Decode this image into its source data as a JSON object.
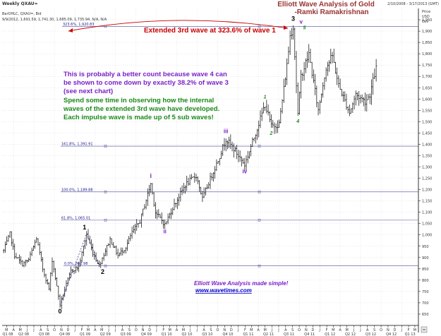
{
  "header": {
    "chart_name": "Weekly QXAU=",
    "series_desc": "BarOHLC, QXAU=, Bid",
    "ohlc_line": "9/9/2012, 1,691.59, 1,741.30, 1,685.09, 1,735.94, N/A, N/A",
    "date_range": "2/10/2008 - 3/17/2013 (GMT)",
    "price_label": "Price",
    "currency_label": "USD",
    "unit_label": "Ozs"
  },
  "title": {
    "line1": "Elliott Wave Analysis of Gold",
    "line2": "-Ramki Ramakrishnan"
  },
  "annotations": {
    "extended": "Extended 3rd wave at 323.6% of wave 1",
    "note_purple": [
      "This is probably a better count because wave 4 can",
      "be shown to come down by exactly 38.2% of wave 3",
      "(see next chart)"
    ],
    "note_green": [
      "Spend some time in observing how the internal",
      "waves of the extended 3rd wave have developed.",
      "Each impulse wave is made up of 5 sub waves!"
    ],
    "footer_line1": "Elliott Wave Analysis made simple!",
    "footer_line2": "www.wavetimes.com"
  },
  "colors": {
    "bar": "#000000",
    "fib_line": "#4a4a9a",
    "purple": "#7a1fc8",
    "green": "#1a8a1a",
    "red_text": "#cc0000",
    "blue_text": "#0000cc",
    "title": "#993333",
    "grid": "#c8c8c8"
  },
  "chart_data": {
    "type": "ohlc",
    "title": "Elliott Wave Analysis of Gold",
    "xlabel": "",
    "ylabel": "Price USD Ozs",
    "ylim": [
      600,
      2000
    ],
    "y_ticks": [
      650,
      700,
      750,
      800,
      850,
      900,
      950,
      1000,
      1050,
      1100,
      1150,
      1200,
      1250,
      1300,
      1350,
      1400,
      1450,
      1500,
      1550,
      1600,
      1650,
      1700,
      1750,
      1800,
      1850,
      1900,
      1950
    ],
    "y_tick_labels": [
      "650",
      "700",
      "750",
      "800",
      "850",
      "900",
      "950",
      "1,000",
      "1,050",
      "1,100",
      "1,150",
      "1,200",
      "1,250",
      "1,300",
      "1,350",
      "1,400",
      "1,450",
      "1,500",
      "1,550",
      "1,600",
      "1,650",
      "1,700",
      "1,750",
      "1,800",
      "1,850",
      "1,900",
      "1,950"
    ],
    "quarters": [
      "Q1 08",
      "Q2 08",
      "Q3 08",
      "Q4 08",
      "Q1 09",
      "Q2 09",
      "Q3 09",
      "Q4 09",
      "Q1 10",
      "Q2 10",
      "Q3 10",
      "Q4 10",
      "Q1 11",
      "Q2 11",
      "Q3 11",
      "Q4 11",
      "Q1 12",
      "Q2 12",
      "Q3 12",
      "Q4 12",
      "Q1 13"
    ],
    "months": [
      "M",
      "A",
      "M",
      "J",
      "J",
      "A",
      "S",
      "O",
      "N",
      "D",
      "J",
      "F",
      "M",
      "A",
      "M",
      "J",
      "J",
      "A",
      "S",
      "O",
      "N",
      "D",
      "J",
      "F",
      "M",
      "A",
      "M",
      "J",
      "J",
      "A",
      "S",
      "O",
      "N",
      "D",
      "J",
      "F",
      "M",
      "A",
      "M",
      "J",
      "J",
      "A",
      "S",
      "O",
      "N",
      "D",
      "J",
      "F",
      "M",
      "A",
      "M",
      "J",
      "J",
      "A",
      "S",
      "O",
      "N",
      "D",
      "J",
      "F",
      "M"
    ],
    "start_label": "Q1 08",
    "fib_levels": [
      {
        "label": "323.6%, 1,920.83",
        "value": 1920.83
      },
      {
        "label": "161.8%, 1,391.91",
        "value": 1391.91
      },
      {
        "label": "100.0%, 1,189.88",
        "value": 1189.88
      },
      {
        "label": "61.8%, 1,065.01",
        "value": 1065.01
      },
      {
        "label": "0.0%, 862.98",
        "value": 862.98
      }
    ],
    "waves": [
      {
        "label": "0",
        "date": "2008-10-26",
        "price": 690,
        "color": "#000000"
      },
      {
        "label": "1",
        "date": "2009-02-22",
        "price": 1005,
        "color": "#000000"
      },
      {
        "label": "2",
        "date": "2009-04-19",
        "price": 865,
        "color": "#000000"
      },
      {
        "label": "i",
        "date": "2009-12-06",
        "price": 1226,
        "color": "#7a1fc8"
      },
      {
        "label": "ii",
        "date": "2010-02-07",
        "price": 1045,
        "color": "#7a1fc8"
      },
      {
        "label": "iii",
        "date": "2010-11-07",
        "price": 1424,
        "color": "#7a1fc8"
      },
      {
        "label": "iv",
        "date": "2011-01-30",
        "price": 1310,
        "color": "#7a1fc8"
      },
      {
        "label": "1",
        "date": "2011-05-01",
        "price": 1577,
        "color": "#1a8a1a"
      },
      {
        "label": "2",
        "date": "2011-05-29",
        "price": 1480,
        "color": "#1a8a1a"
      },
      {
        "label": "3",
        "date": "2011-09-04",
        "price": 1921,
        "color": "#000000"
      },
      {
        "label": "v",
        "date": "2011-09-11",
        "price": 1921,
        "color": "#7a1fc8"
      },
      {
        "label": "4",
        "date": "2011-09-25",
        "price": 1532,
        "color": "#1a8a1a"
      },
      {
        "label": "5",
        "date": "2011-10-02",
        "price": 1920,
        "color": "#1a8a1a"
      }
    ],
    "anchors": [
      [
        "2008-02-17",
        930
      ],
      [
        "2008-03-16",
        1005
      ],
      [
        "2008-04-06",
        910
      ],
      [
        "2008-05-11",
        870
      ],
      [
        "2008-06-08",
        890
      ],
      [
        "2008-07-13",
        985
      ],
      [
        "2008-08-10",
        850
      ],
      [
        "2008-09-07",
        760
      ],
      [
        "2008-09-21",
        890
      ],
      [
        "2008-10-26",
        690
      ],
      [
        "2008-11-16",
        760
      ],
      [
        "2008-12-14",
        840
      ],
      [
        "2009-01-18",
        860
      ],
      [
        "2009-02-22",
        1005
      ],
      [
        "2009-03-22",
        920
      ],
      [
        "2009-04-19",
        865
      ],
      [
        "2009-06-07",
        980
      ],
      [
        "2009-07-12",
        910
      ],
      [
        "2009-08-16",
        945
      ],
      [
        "2009-09-13",
        1010
      ],
      [
        "2009-10-18",
        1060
      ],
      [
        "2009-12-06",
        1226
      ],
      [
        "2009-12-27",
        1100
      ],
      [
        "2010-02-07",
        1045
      ],
      [
        "2010-03-14",
        1120
      ],
      [
        "2010-05-09",
        1220
      ],
      [
        "2010-06-27",
        1262
      ],
      [
        "2010-07-25",
        1160
      ],
      [
        "2010-08-22",
        1230
      ],
      [
        "2010-10-03",
        1330
      ],
      [
        "2010-11-07",
        1424
      ],
      [
        "2010-12-12",
        1380
      ],
      [
        "2011-01-30",
        1310
      ],
      [
        "2011-03-13",
        1430
      ],
      [
        "2011-05-01",
        1577
      ],
      [
        "2011-05-29",
        1480
      ],
      [
        "2011-07-03",
        1490
      ],
      [
        "2011-08-07",
        1750
      ],
      [
        "2011-08-21",
        1880
      ],
      [
        "2011-09-04",
        1921
      ],
      [
        "2011-09-25",
        1532
      ],
      [
        "2011-10-09",
        1700
      ],
      [
        "2011-11-13",
        1800
      ],
      [
        "2011-12-25",
        1550
      ],
      [
        "2012-01-29",
        1740
      ],
      [
        "2012-02-26",
        1790
      ],
      [
        "2012-03-25",
        1660
      ],
      [
        "2012-05-13",
        1540
      ],
      [
        "2012-06-10",
        1620
      ],
      [
        "2012-07-22",
        1590
      ],
      [
        "2012-08-12",
        1620
      ],
      [
        "2012-08-26",
        1680
      ],
      [
        "2012-09-09",
        1736
      ]
    ]
  }
}
